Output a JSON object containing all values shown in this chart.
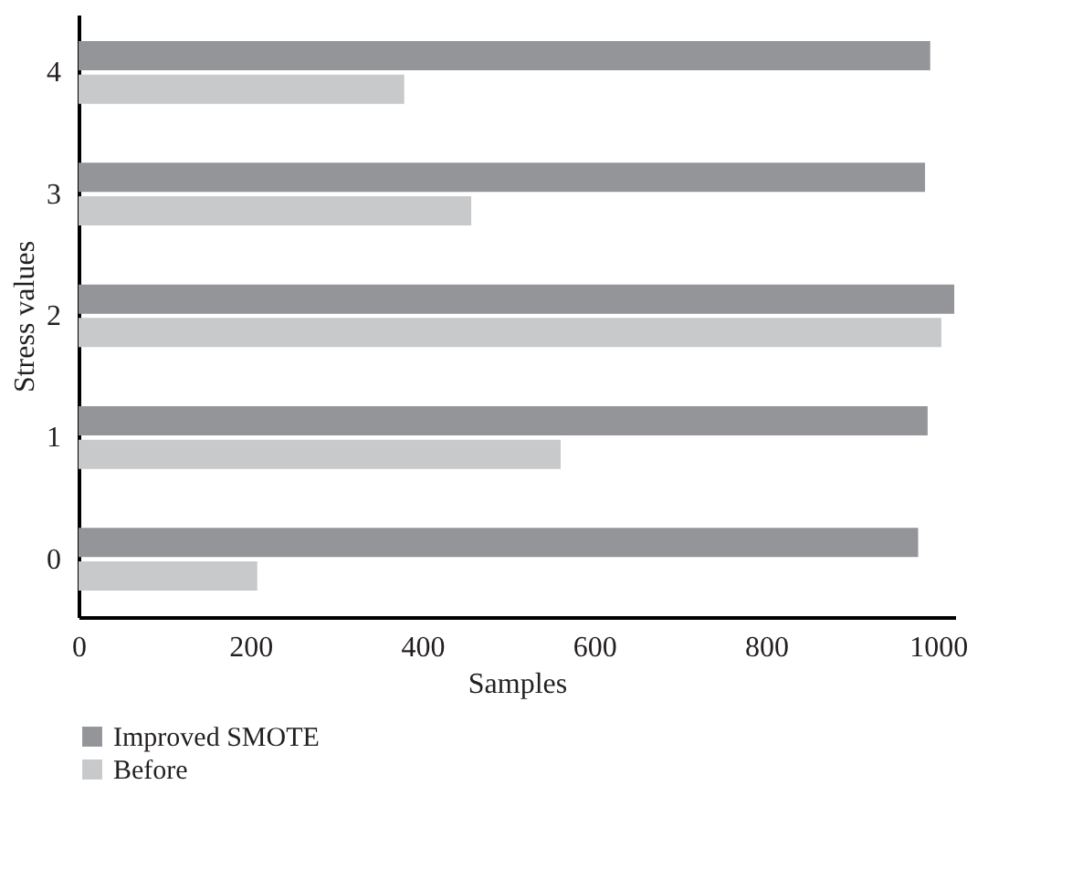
{
  "chart_data": {
    "type": "bar",
    "orientation": "horizontal",
    "xlabel": "Samples",
    "ylabel": "Stress values",
    "categories": [
      "4",
      "3",
      "2",
      "1",
      "0"
    ],
    "series": [
      {
        "name": "Improved SMOTE",
        "color": "#939598",
        "values": [
          991,
          985,
          1019,
          988,
          977
        ]
      },
      {
        "name": "Before",
        "color": "#c8c9cb",
        "values": [
          379,
          457,
          1004,
          561,
          208
        ]
      }
    ],
    "xlim": [
      0,
      1020
    ],
    "xticks": [
      0,
      200,
      400,
      600,
      800,
      1000
    ],
    "grid": false,
    "legend": "bottom"
  }
}
